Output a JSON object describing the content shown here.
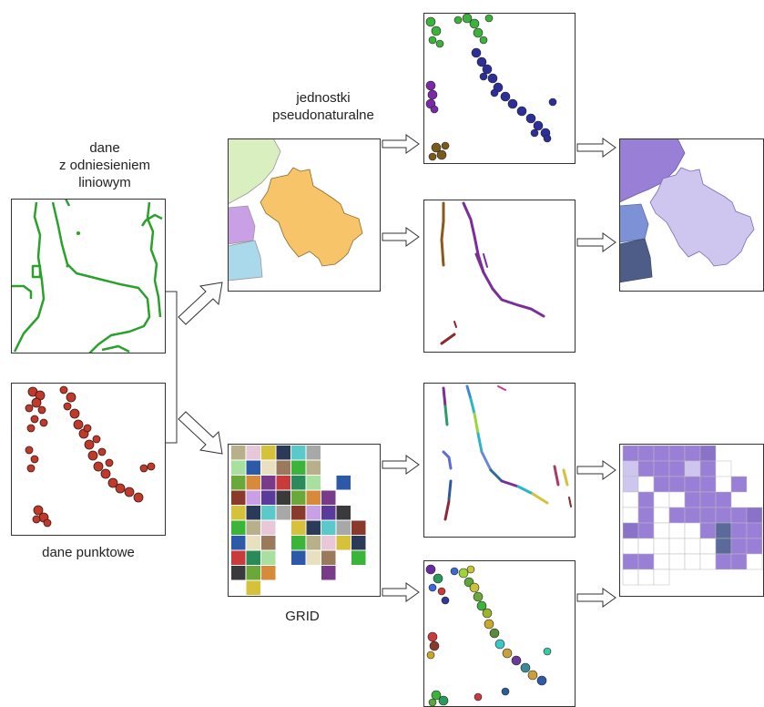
{
  "labels": {
    "linear_data": [
      "dane",
      "z odniesieniem",
      "liniowym"
    ],
    "point_data": "dane punktowe",
    "pseudo_units": [
      "jednostki",
      "pseudonaturalne"
    ],
    "grid": "GRID"
  },
  "colors": {
    "line_green": "#2aa12a",
    "point_red": "#c0392b",
    "unit_green": "#d9efc0",
    "unit_orange": "#f7c46a",
    "unit_purple": "#c9a0e6",
    "unit_blue": "#a9d9ea",
    "result_dark": "#9a7fd6",
    "result_light": "#cfc6ef",
    "result_mid": "#7d91d6",
    "result_slate": "#4d5d88",
    "arrow_stroke": "#333333"
  }
}
